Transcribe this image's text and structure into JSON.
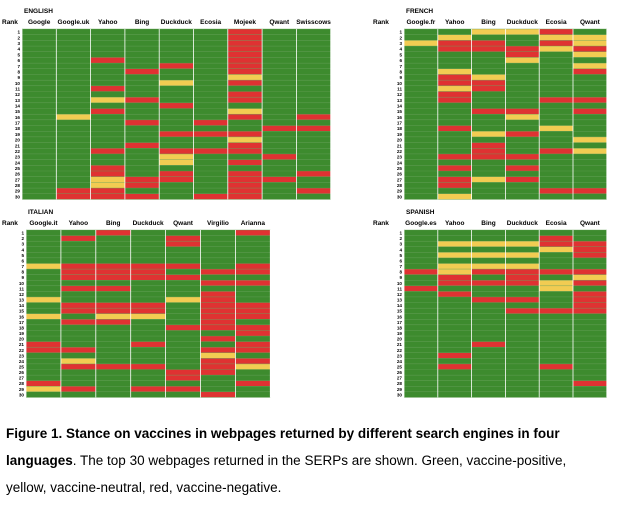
{
  "palette": {
    "positive": "#3d8b2e",
    "neutral": "#f2cc52",
    "negative": "#df3232",
    "grid": "#5e9c50"
  },
  "rank_label": "Rank",
  "ranks": [
    "1",
    "2",
    "3",
    "4",
    "5",
    "6",
    "7",
    "8",
    "9",
    "10",
    "11",
    "12",
    "13",
    "14",
    "15",
    "16",
    "17",
    "18",
    "19",
    "20",
    "21",
    "22",
    "23",
    "24",
    "25",
    "26",
    "27",
    "28",
    "29",
    "30"
  ],
  "caption": {
    "figure_label": "Figure 1. Stance on vaccines in webpages returned by different search engines in four languages",
    "text": ". The top 30 webpages returned in the SERPs are shown. Green, vaccine-positive, yellow, vaccine-neutral, red, vaccine-negative."
  },
  "chart_data": [
    {
      "type": "heatmap",
      "title": "ENGLISH",
      "ylabel": "Rank",
      "legend": {
        "G": "vaccine-positive",
        "Y": "vaccine-neutral",
        "R": "vaccine-negative"
      },
      "columns": [
        "Google",
        "Google.uk",
        "Yahoo",
        "Bing",
        "Duckduck",
        "Ecosia",
        "Mojeek",
        "Qwant",
        "Swisscows"
      ],
      "rows": [
        "GGGGGGRGG",
        "GGGGGGRGG",
        "GGGGGGRGG",
        "GGGGGGRGG",
        "GGGGGGRGG",
        "GGRGGGRGG",
        "GGGGRGRGG",
        "GGGRGGRGG",
        "GGGGGGYGG",
        "GGGGYGRGG",
        "GGRGGGGGG",
        "GGGGGGRGG",
        "GGYRGGRGG",
        "GGGGRGGGG",
        "GGRGGGYGG",
        "GYGGGGRGR",
        "GGGRGRGGG",
        "GGGGGGGRR",
        "GGGGRRRGG",
        "GGGGGGYGG",
        "GGGRGGRGG",
        "GGRGRRRGG",
        "GGGGYGGRG",
        "GGGGYGRGG",
        "GGRGGGGGG",
        "GGRGRGRGR",
        "GGYRRGRRG",
        "GGYRGGRGG",
        "GRRGGGRGR",
        "GRRRGRRGG"
      ]
    },
    {
      "type": "heatmap",
      "title": "FRENCH",
      "ylabel": "Rank",
      "legend": {
        "G": "vaccine-positive",
        "Y": "vaccine-neutral",
        "R": "vaccine-negative"
      },
      "columns": [
        "Google.fr",
        "Yahoo",
        "Bing",
        "Duckduck",
        "Ecosia",
        "Qwant"
      ],
      "rows": [
        "GGYYRG",
        "GYGGYY",
        "YRRGRY",
        "GRRRYR",
        "GGGRGY",
        "GGGYGG",
        "GGGGGY",
        "GYGGGR",
        "GRYGGG",
        "GRRGGG",
        "GYRGGG",
        "GRGGGG",
        "GRGGRR",
        "GGGGGG",
        "GGRRGR",
        "GGGYGG",
        "GGGGGG",
        "GRGGYG",
        "GGYRGG",
        "GGGGGY",
        "GGRGGG",
        "GGRGRY",
        "GRRRGG",
        "GGGGGG",
        "GRGRGG",
        "GGGGGG",
        "GRYRGG",
        "GRGGGG",
        "GGGGRR",
        "GYGGGG"
      ]
    },
    {
      "type": "heatmap",
      "title": "ITALIAN",
      "ylabel": "Rank",
      "legend": {
        "G": "vaccine-positive",
        "Y": "vaccine-neutral",
        "R": "vaccine-negative"
      },
      "columns": [
        "Google.it",
        "Yahoo",
        "Bing",
        "Duckduck",
        "Qwant",
        "Virgilio",
        "Arianna"
      ],
      "rows": [
        "GGRGGGR",
        "GRGGRGG",
        "GGGGRGG",
        "GGGGGGG",
        "GGGGGGG",
        "GGGGGGG",
        "YRRRRGR",
        "GRRRGRR",
        "GRRRRGG",
        "GGGGGRR",
        "GRRGGGG",
        "GGGGGRG",
        "YGGGYRG",
        "GRRRGRR",
        "GRRRGRR",
        "YGYYGRR",
        "GRRGGRG",
        "GGGGRRR",
        "GGGGGGR",
        "GGGGGRG",
        "RGGRGGR",
        "RRGGGRR",
        "GGGGGYG",
        "GYGGGRR",
        "GRRRGRY",
        "GGGGRRG",
        "GGGGRGG",
        "RGGGGGR",
        "YRGRRGG",
        "GGGGGRG"
      ]
    },
    {
      "type": "heatmap",
      "title": "SPANISH",
      "ylabel": "Rank",
      "legend": {
        "G": "vaccine-positive",
        "Y": "vaccine-neutral",
        "R": "vaccine-negative"
      },
      "columns": [
        "Google.es",
        "Yahoo",
        "Bing",
        "Duckduck",
        "Ecosia",
        "Qwant"
      ],
      "rows": [
        "GGGGGG",
        "GGGGRG",
        "GYYYRR",
        "GGGGYR",
        "GYYYGR",
        "GGGGGG",
        "GYYYGG",
        "RYRRRR",
        "GRGRGY",
        "GRRRYR",
        "RGGGYG",
        "GRGGGR",
        "GGRRGR",
        "GGGGGR",
        "GGGRRR",
        "GGGGGG",
        "GGGGGG",
        "GGGGGG",
        "GGGGGG",
        "GGGGGG",
        "GGRGGG",
        "GGGGGG",
        "GRGGGG",
        "GGGGGG",
        "GRGGRG",
        "GGGGGG",
        "GGGGGG",
        "GGGGGR",
        "GGGGGG",
        "GGGGGG"
      ]
    }
  ]
}
